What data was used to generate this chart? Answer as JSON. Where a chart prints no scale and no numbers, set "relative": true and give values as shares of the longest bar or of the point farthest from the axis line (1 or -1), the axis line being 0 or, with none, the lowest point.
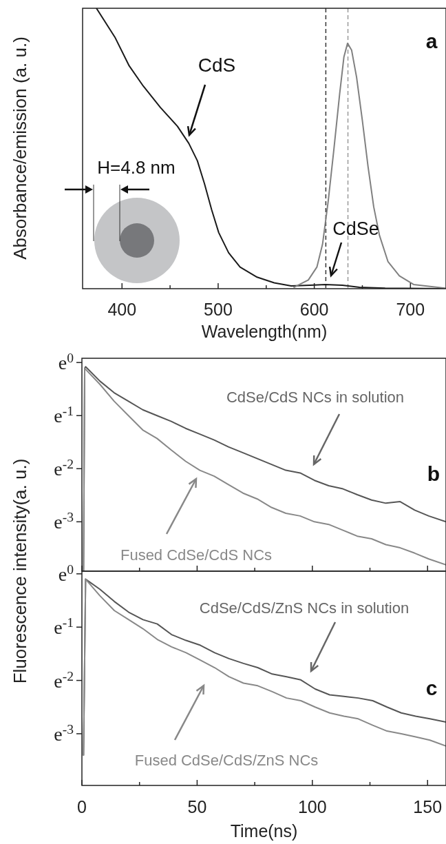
{
  "chart_data": [
    {
      "type": "line",
      "relative": true,
      "xlabel": "Wavelength(nm)",
      "ylabel": "Absorbance/emission (a. u.)",
      "xlim": [
        359,
        737
      ],
      "xticks": [
        400,
        {
          "value": 450,
          "label": null
        },
        500,
        {
          "value": 550,
          "label": null
        },
        600,
        {
          "value": 650,
          "label": null
        },
        700
      ],
      "series": [
        {
          "color": "#1a1a1a",
          "x": [
            373.4,
            392.6,
            407.4,
            422,
            440,
            457.7,
            469.5,
            478.4,
            485.8,
            493.2,
            500.6,
            510.9,
            522.8,
            540.5,
            558.3,
            576,
            599.7,
            611.5,
            629.3,
            647,
            673.7,
            736
          ],
          "values": [
            1.0,
            0.897,
            0.795,
            0.723,
            0.646,
            0.579,
            0.518,
            0.456,
            0.374,
            0.282,
            0.2,
            0.128,
            0.077,
            0.041,
            0.021,
            0.01,
            0.013,
            0.015,
            0.012,
            0.005,
            0.002,
            0
          ]
        },
        {
          "color": "#808080",
          "x": [
            579,
            593.8,
            602.7,
            608.6,
            614.5,
            620.4,
            626.3,
            630.8,
            634.6,
            638.8,
            644,
            650,
            655.9,
            661.8,
            667.8,
            676.6,
            688.5,
            703.3,
            736
          ],
          "values": [
            0.005,
            0.031,
            0.077,
            0.159,
            0.313,
            0.497,
            0.692,
            0.826,
            0.875,
            0.851,
            0.754,
            0.6,
            0.436,
            0.292,
            0.19,
            0.097,
            0.046,
            0.015,
            0.002
          ]
        }
      ],
      "ref_lines": [
        {
          "axis": "x",
          "value": 612,
          "color": "#333333",
          "line_style": "dashed"
        },
        {
          "axis": "x",
          "value": 635,
          "color": "#999999",
          "line_style": "dashed"
        }
      ],
      "annotations": [
        "CdS",
        "CdSe",
        "H=4.8 nm",
        "a"
      ]
    },
    {
      "type": "line",
      "ylabel": "Fluorescence intensity(a. u.)",
      "xlim": [
        0,
        158
      ],
      "ylim": [
        -3.93,
        0.08
      ],
      "tick_labels": "y",
      "xticks": [
        0,
        {
          "value": 25,
          "label": null
        },
        50,
        {
          "value": 75,
          "label": null
        },
        100,
        {
          "value": 125,
          "label": null
        },
        150
      ],
      "yticks": [
        {
          "value": 0,
          "label": "e$^{0}$"
        },
        {
          "value": -1,
          "label": "e$^{-1}$"
        },
        {
          "value": -2,
          "label": "e$^{-2}$"
        },
        {
          "value": -3,
          "label": "e$^{-3}$"
        }
      ],
      "series": [
        {
          "color": "#555555",
          "x": [
            0.7,
            1.2,
            1.6,
            7.8,
            14,
            20.2,
            26.4,
            32.6,
            38.8,
            45,
            51.2,
            57.4,
            63.6,
            69.9,
            76.1,
            82.3,
            88.5,
            94.7,
            100.9,
            107.1,
            113.3,
            119.5,
            125.7,
            131.9,
            138.1,
            144.4,
            150.5,
            158
          ],
          "values": [
            -3.92,
            -0.11,
            -0.08,
            -0.35,
            -0.57,
            -0.73,
            -0.89,
            -1.0,
            -1.11,
            -1.24,
            -1.35,
            -1.46,
            -1.59,
            -1.7,
            -1.81,
            -1.92,
            -2.03,
            -2.08,
            -2.22,
            -2.32,
            -2.38,
            -2.49,
            -2.59,
            -2.65,
            -2.62,
            -2.78,
            -2.89,
            -3.0
          ]
        },
        {
          "color": "#888888",
          "x": [
            0.7,
            1.2,
            7.8,
            14,
            20.2,
            26.4,
            32.6,
            38.8,
            45,
            51.2,
            57.4,
            63.6,
            69.9,
            76.1,
            82.3,
            88.5,
            94.7,
            100.9,
            107.1,
            113.3,
            119.5,
            125.7,
            131.9,
            138.1,
            144.4,
            150.5,
            158
          ],
          "values": [
            -3.92,
            -0.11,
            -0.41,
            -0.73,
            -1.0,
            -1.27,
            -1.43,
            -1.65,
            -1.86,
            -2.03,
            -2.14,
            -2.3,
            -2.46,
            -2.57,
            -2.73,
            -2.84,
            -2.89,
            -3.0,
            -3.05,
            -3.16,
            -3.27,
            -3.32,
            -3.43,
            -3.49,
            -3.59,
            -3.7,
            -3.81
          ]
        }
      ],
      "annotations": [
        "CdSe/CdS NCs in solution",
        "Fused CdSe/CdS NCs",
        "b"
      ]
    },
    {
      "type": "line",
      "xlabel": "Time(ns)",
      "xlim": [
        0,
        158
      ],
      "ylim": [
        -3.97,
        0.05
      ],
      "xticks": [
        0,
        {
          "value": 25,
          "label": null
        },
        50,
        {
          "value": 75,
          "label": null
        },
        100,
        {
          "value": 125,
          "label": null
        },
        150
      ],
      "yticks": [
        {
          "value": 0,
          "label": "e$^{0}$"
        },
        {
          "value": -1,
          "label": "e$^{-1}$"
        },
        {
          "value": -2,
          "label": "e$^{-2}$"
        },
        {
          "value": -3,
          "label": "e$^{-3}$"
        }
      ],
      "series": [
        {
          "color": "#555555",
          "x": [
            0.7,
            1.6,
            7.8,
            14.1,
            20.3,
            26.5,
            32.7,
            38.9,
            45.2,
            51.4,
            57.6,
            63.8,
            70.1,
            76.3,
            82.6,
            88.8,
            95,
            101.2,
            107.5,
            113.7,
            119.9,
            126.2,
            132.4,
            138.6,
            144.8,
            151,
            158
          ],
          "values": [
            -3.4,
            -0.1,
            -0.29,
            -0.52,
            -0.72,
            -0.86,
            -0.94,
            -1.14,
            -1.25,
            -1.34,
            -1.48,
            -1.59,
            -1.68,
            -1.76,
            -1.88,
            -1.93,
            -1.99,
            -2.16,
            -2.27,
            -2.3,
            -2.33,
            -2.38,
            -2.5,
            -2.61,
            -2.67,
            -2.72,
            -2.78
          ]
        },
        {
          "color": "#888888",
          "x": [
            0.7,
            1.6,
            7.8,
            14.1,
            20.3,
            26.5,
            32.7,
            38.9,
            45.2,
            51.4,
            57.6,
            63.8,
            70.1,
            76.3,
            82.6,
            88.8,
            95,
            101.2,
            107.5,
            113.7,
            119.9,
            126.2,
            132.4,
            138.6,
            144.8,
            151,
            158
          ],
          "values": [
            -3.4,
            -0.1,
            -0.41,
            -0.69,
            -0.86,
            -1.03,
            -1.23,
            -1.37,
            -1.48,
            -1.62,
            -1.76,
            -1.93,
            -2.05,
            -2.1,
            -2.21,
            -2.33,
            -2.38,
            -2.5,
            -2.61,
            -2.67,
            -2.72,
            -2.84,
            -2.95,
            -3.0,
            -3.06,
            -3.12,
            -3.23
          ]
        }
      ],
      "annotations": [
        "CdSe/CdS/ZnS NCs in solution",
        "Fused CdSe/CdS/ZnS NCs",
        "c"
      ]
    }
  ]
}
